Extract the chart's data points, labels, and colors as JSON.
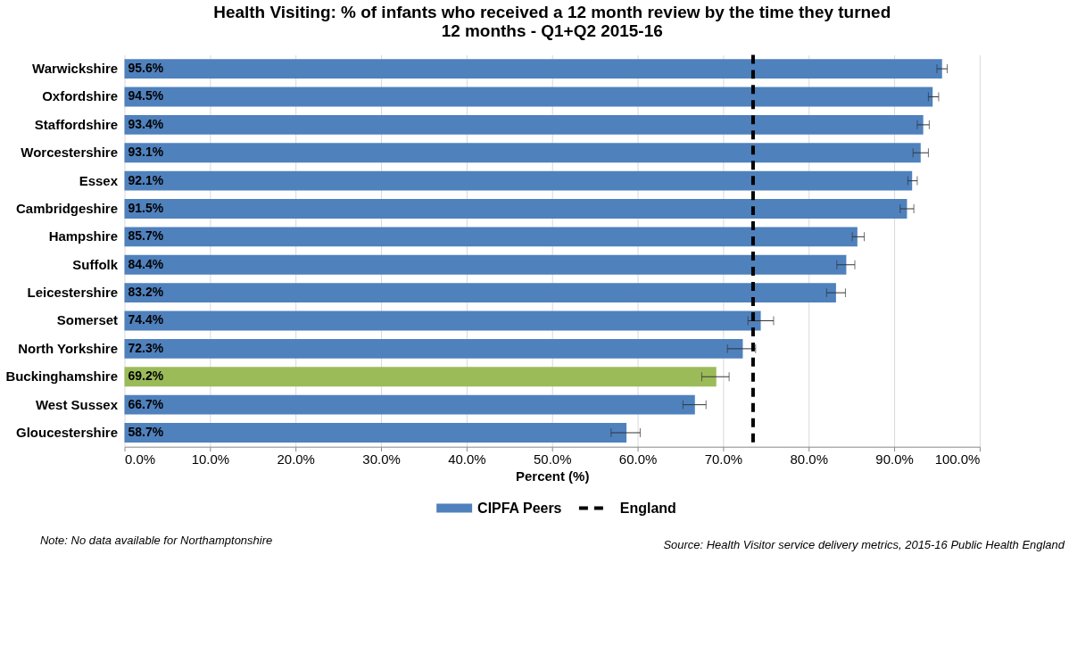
{
  "chart_data": {
    "type": "bar",
    "orientation": "horizontal",
    "title": "Health Visiting: % of infants who received a 12 month review by the time they turned 12 months - Q1+Q2 2015-16",
    "xlabel": "Percent (%)",
    "categories": [
      "Warwickshire",
      "Oxfordshire",
      "Staffordshire",
      "Worcestershire",
      "Essex",
      "Cambridgeshire",
      "Hampshire",
      "Suffolk",
      "Leicestershire",
      "Somerset",
      "North Yorkshire",
      "Buckinghamshire",
      "West Sussex",
      "Gloucestershire"
    ],
    "series": [
      {
        "name": "CIPFA Peers",
        "color": "#4f81bd",
        "values": [
          95.6,
          94.5,
          93.4,
          93.1,
          92.1,
          91.5,
          85.7,
          84.4,
          83.2,
          74.4,
          72.3,
          69.2,
          66.7,
          58.7
        ],
        "colors": [
          "#4f81bd",
          "#4f81bd",
          "#4f81bd",
          "#4f81bd",
          "#4f81bd",
          "#4f81bd",
          "#4f81bd",
          "#4f81bd",
          "#4f81bd",
          "#4f81bd",
          "#4f81bd",
          "#9bbb59",
          "#4f81bd",
          "#4f81bd"
        ],
        "value_labels": [
          "95.6%",
          "94.5%",
          "93.4%",
          "93.1%",
          "92.1%",
          "91.5%",
          "85.7%",
          "84.4%",
          "83.2%",
          "74.4%",
          "72.3%",
          "69.2%",
          "66.7%",
          "58.7%"
        ],
        "errors": [
          [
            95.0,
            96.2
          ],
          [
            94.0,
            95.2
          ],
          [
            92.7,
            94.1
          ],
          [
            92.2,
            94.0
          ],
          [
            91.6,
            92.7
          ],
          [
            90.7,
            92.3
          ],
          [
            85.1,
            86.5
          ],
          [
            83.3,
            85.4
          ],
          [
            82.1,
            84.3
          ],
          [
            72.9,
            75.9
          ],
          [
            70.5,
            73.8
          ],
          [
            67.5,
            70.7
          ],
          [
            65.3,
            68.0
          ],
          [
            56.9,
            60.3
          ]
        ]
      }
    ],
    "ref_lines": [
      {
        "axis": "x",
        "value": 73.5,
        "label": "England",
        "color": "#000000",
        "line_style": "dashed"
      }
    ],
    "xlim": [
      0,
      100
    ],
    "xticks": [
      {
        "value": 0,
        "label": "0.0%"
      },
      {
        "value": 10,
        "label": "10.0%"
      },
      {
        "value": 20,
        "label": "20.0%"
      },
      {
        "value": 30,
        "label": "30.0%"
      },
      {
        "value": 40,
        "label": "40.0%"
      },
      {
        "value": 50,
        "label": "50.0%"
      },
      {
        "value": 60,
        "label": "60.0%"
      },
      {
        "value": 70,
        "label": "70.0%"
      },
      {
        "value": 80,
        "label": "80.0%"
      },
      {
        "value": 90,
        "label": "90.0%"
      },
      {
        "value": 100,
        "label": "100.0%"
      }
    ],
    "grid": "x",
    "legend": "bottom",
    "annotations": [
      "Note: No data available for Northamptonshire",
      "Source: Health Visitor service delivery metrics, 2015-16 Public Health England"
    ]
  }
}
